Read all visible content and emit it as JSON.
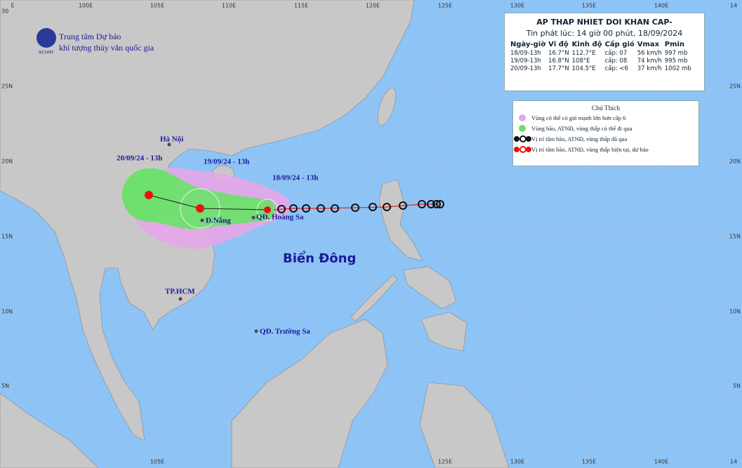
{
  "header": {
    "org_line1": "Trung tâm Dự báo",
    "org_line2": "khí tượng thủy văn quốc gia",
    "logo_text": "NCHMF"
  },
  "bulletin": {
    "title": "AP THAP NHIET DOI KHAN CAP-",
    "issued": "Tin phát lúc: 14 giờ 00 phút, 18/09/2024",
    "columns": [
      "Ngày-giờ",
      "Vĩ độ",
      "Kinh độ",
      "Cấp gió",
      "Vmax",
      "Pmin"
    ],
    "rows": [
      [
        "18/09-13h",
        "16.7°N",
        "112.7°E",
        "cấp: 07",
        "56 km/h",
        "997 mb"
      ],
      [
        "19/09-13h",
        "16.8°N",
        "108°E",
        "cấp: 08",
        "74 km/h",
        "995 mb"
      ],
      [
        "20/09-13h",
        "17.7°N",
        "104.5°E",
        "cấp: <6",
        "37 km/h",
        "1002 mb"
      ]
    ]
  },
  "legend": {
    "title": "Chú Thích",
    "items": [
      "Vùng có thể có gió mạnh lớn hơn cấp 6",
      "Vùng bão, ATNĐ, vùng thấp có thể đi qua",
      "Vị trí tâm bão, ATNĐ, vùng thấp đã qua",
      "Vị trí tâm bão, ATNĐ, vùng thấp hiện tại, dự báo"
    ]
  },
  "map": {
    "axis_top": [
      "E",
      "100E",
      "105E",
      "110E",
      "115E",
      "120E",
      "125E",
      "130E",
      "135E",
      "140E",
      "14"
    ],
    "axis_bottom": [
      "105E",
      "125E",
      "130E",
      "135E",
      "140E",
      "14"
    ],
    "axis_left": [
      "30",
      "25N",
      "20N",
      "15N",
      "10N",
      "5N"
    ],
    "axis_right": [
      "25N",
      "20N",
      "15N",
      "10N",
      "5N"
    ],
    "places": [
      "Hà Nội",
      "Đ.Nẵng",
      "QĐ. Hoàng Sa",
      "TP.HCM",
      "QĐ. Trường Sa"
    ],
    "sea_label": "Biển Đông",
    "track_labels": [
      "20/09/24 - 13h",
      "19/09/24 - 13h",
      "18/09/24 - 13h"
    ]
  }
}
